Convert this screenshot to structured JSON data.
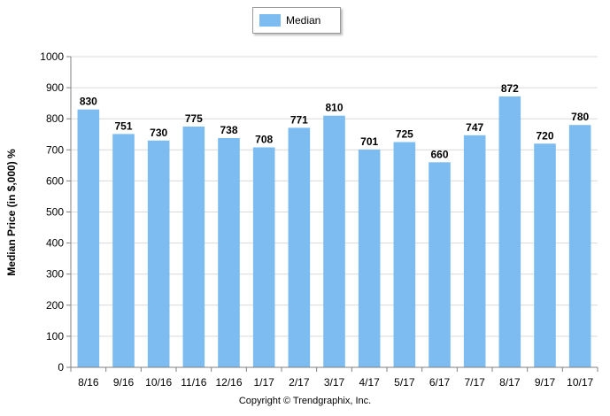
{
  "chart_data": {
    "type": "bar",
    "categories": [
      "8/16",
      "9/16",
      "10/16",
      "11/16",
      "12/16",
      "1/17",
      "2/17",
      "3/17",
      "4/17",
      "5/17",
      "6/17",
      "7/17",
      "8/17",
      "9/17",
      "10/17"
    ],
    "series": [
      {
        "name": "Median",
        "values": [
          830,
          751,
          730,
          775,
          738,
          708,
          771,
          810,
          701,
          725,
          660,
          747,
          872,
          720,
          780
        ]
      }
    ],
    "title": "",
    "xlabel": "",
    "ylabel": "Median Price (in $,000) %",
    "ylim": [
      0,
      1000
    ],
    "yticks": [
      0,
      100,
      200,
      300,
      400,
      500,
      600,
      700,
      800,
      900,
      1000
    ],
    "grid": true,
    "legend_position": "top-center",
    "bar_color": "#7cbcf0",
    "grid_color": "#d9d9d9"
  },
  "footer": {
    "copyright": "Copyright © Trendgraphix, Inc."
  }
}
